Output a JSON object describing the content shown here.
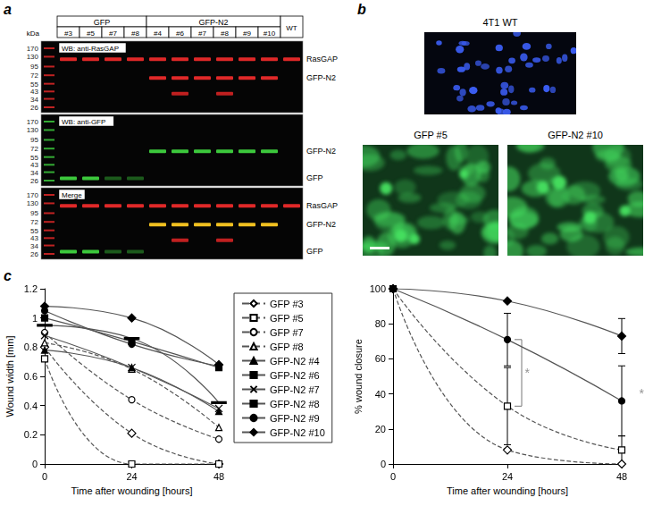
{
  "panel_a": {
    "letter": "a",
    "marker_unit": "kDa",
    "markers": [
      170,
      130,
      95,
      72,
      55,
      43,
      34,
      26
    ],
    "groups": [
      {
        "label": "GFP",
        "lanes": [
          "#3",
          "#5",
          "#7",
          "#8"
        ]
      },
      {
        "label": "GFP-N2",
        "lanes": [
          "#4",
          "#6",
          "#7",
          "#8",
          "#9",
          "#10"
        ]
      }
    ],
    "extra_lane": "WT",
    "blots": [
      {
        "title": "WB: anti-RasGAP",
        "bands": [
          {
            "label": "RasGAP",
            "kda": 120,
            "color": "#e02828",
            "lanes": [
              0,
              1,
              2,
              3,
              4,
              5,
              6,
              7,
              8,
              9,
              10
            ]
          },
          {
            "label": "GFP-N2",
            "kda": 66,
            "color": "#e02828",
            "lanes": [
              4,
              5,
              6,
              7,
              8,
              9
            ]
          },
          {
            "kda": 40,
            "color": "#c02020",
            "lanes": [
              5,
              7
            ]
          }
        ]
      },
      {
        "title": "WB: anti-GFP",
        "bands": [
          {
            "label": "GFP-N2",
            "kda": 66,
            "color": "#3cc83c",
            "lanes": [
              4,
              5,
              6,
              7,
              8,
              9
            ]
          },
          {
            "label": "GFP",
            "kda": 28,
            "color": "#3cc83c",
            "lanes": [
              0,
              1
            ]
          },
          {
            "kda": 28,
            "color": "#1c5a1c",
            "lanes": [
              2,
              3
            ]
          }
        ]
      },
      {
        "title": "Merge",
        "bands": [
          {
            "label": "RasGAP",
            "kda": 120,
            "color": "#e02828",
            "lanes": [
              0,
              1,
              2,
              3,
              4,
              5,
              6,
              7,
              8,
              9,
              10
            ]
          },
          {
            "label": "GFP-N2",
            "kda": 66,
            "color": "#f0c020",
            "lanes": [
              4,
              5,
              6,
              7,
              8,
              9
            ]
          },
          {
            "kda": 40,
            "color": "#c02020",
            "lanes": [
              5,
              7
            ]
          },
          {
            "label": "GFP",
            "kda": 28,
            "color": "#3cc83c",
            "lanes": [
              0,
              1
            ]
          },
          {
            "kda": 28,
            "color": "#1c5a1c",
            "lanes": [
              2,
              3
            ]
          }
        ]
      }
    ]
  },
  "panel_b": {
    "letter": "b",
    "images": [
      {
        "title": "4T1 WT",
        "color": "#3a5cf0"
      },
      {
        "title": "GFP #5",
        "color": "#46e060"
      },
      {
        "title": "GFP-N2 #10",
        "color": "#46e060"
      }
    ]
  },
  "panel_c": {
    "letter": "c"
  },
  "chart_data": [
    {
      "type": "line",
      "x_label": "Time after wounding [hours]",
      "y_label": "Wound width [mm]",
      "x": [
        0,
        24,
        48
      ],
      "xlim": [
        0,
        48
      ],
      "xticks": [
        0,
        24,
        48
      ],
      "ylim": [
        0,
        1.2
      ],
      "yticks": [
        0,
        0.2,
        0.4,
        0.6,
        0.8,
        1,
        1.2
      ],
      "grid": false,
      "legend": "right",
      "series": [
        {
          "name": "GFP #3",
          "color": "#555555",
          "marker": "open_diamond",
          "line_style": "dashed",
          "values": [
            0.8,
            0.21,
            0
          ]
        },
        {
          "name": "GFP #5",
          "color": "#555555",
          "marker": "open_square",
          "line_style": "dashed",
          "values": [
            0.72,
            0,
            0
          ]
        },
        {
          "name": "GFP #7",
          "color": "#555555",
          "marker": "open_circle",
          "line_style": "dashed",
          "values": [
            0.9,
            0.44,
            0.17
          ]
        },
        {
          "name": "GFP #8",
          "color": "#555555",
          "marker": "open_triangle",
          "line_style": "dashed",
          "values": [
            0.83,
            0.65,
            0.25
          ]
        },
        {
          "name": "GFP-N2 #4",
          "color": "#555555",
          "marker": "filled_triangle",
          "line_style": "solid",
          "values": [
            0.78,
            0.66,
            0.36
          ]
        },
        {
          "name": "GFP-N2 #6",
          "color": "#555555",
          "marker": "filled_square",
          "line_style": "solid",
          "values": [
            1.0,
            0.84,
            0.66
          ]
        },
        {
          "name": "GFP-N2 #7",
          "color": "#555555",
          "marker": "x",
          "line_style": "solid",
          "values": [
            0.88,
            0.66,
            0.38
          ]
        },
        {
          "name": "GFP-N2 #8",
          "color": "#555555",
          "marker": "dash",
          "line_style": "solid",
          "values": [
            0.95,
            0.86,
            0.42
          ]
        },
        {
          "name": "GFP-N2 #9",
          "color": "#555555",
          "marker": "filled_circle",
          "line_style": "solid",
          "values": [
            1.05,
            0.82,
            0.67
          ]
        },
        {
          "name": "GFP-N2 #10",
          "color": "#555555",
          "marker": "filled_diamond",
          "line_style": "solid",
          "values": [
            1.08,
            1.0,
            0.68
          ]
        }
      ]
    },
    {
      "type": "line",
      "x_label": "Time after wounding [hours]",
      "y_label": "% wound closure",
      "x": [
        0,
        24,
        48
      ],
      "xlim": [
        0,
        48
      ],
      "xticks": [
        0,
        24,
        48
      ],
      "ylim": [
        0,
        100
      ],
      "yticks": [
        0,
        20,
        40,
        60,
        80,
        100
      ],
      "grid": false,
      "series": [
        {
          "name": "GFP #3",
          "color": "#555555",
          "marker": "open_diamond",
          "line_style": "dashed",
          "values": [
            100,
            8,
            0
          ]
        },
        {
          "name": "GFP #5",
          "color": "#555555",
          "marker": "open_square",
          "line_style": "dashed",
          "values": [
            100,
            33,
            8
          ],
          "errors": [
            null,
            22,
            8
          ]
        },
        {
          "name": "GFP-N2 #9",
          "color": "#555555",
          "marker": "filled_circle",
          "line_style": "solid",
          "values": [
            100,
            71,
            36
          ],
          "errors": [
            null,
            15,
            20
          ]
        },
        {
          "name": "GFP-N2 #10",
          "color": "#555555",
          "marker": "filled_diamond",
          "line_style": "solid",
          "values": [
            100,
            93,
            73
          ],
          "errors": [
            null,
            null,
            10
          ]
        }
      ],
      "annotations": [
        {
          "text": "*",
          "x": 24,
          "y": [
            33,
            71
          ]
        },
        {
          "text": "*",
          "x": 48,
          "y": [
            8,
            73
          ]
        }
      ]
    }
  ]
}
